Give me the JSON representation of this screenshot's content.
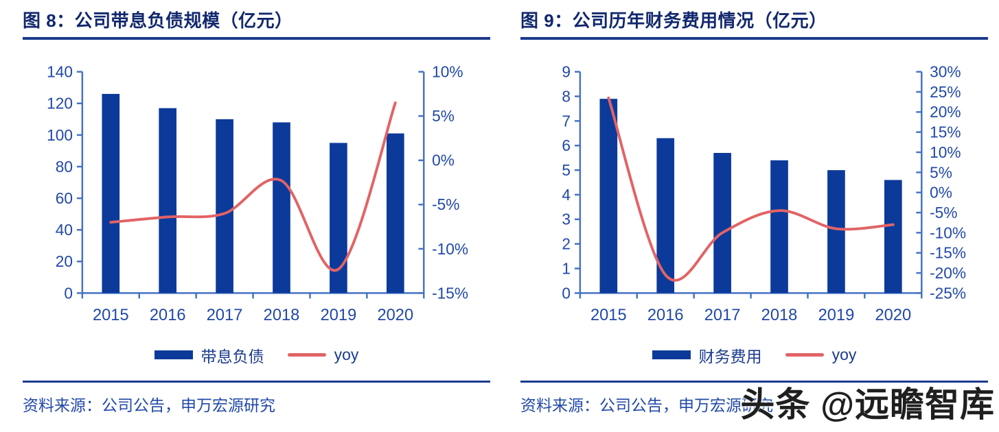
{
  "watermark": {
    "text": "头条 @远瞻智库"
  },
  "colors": {
    "bar": "#0c3a9a",
    "line": "#e16366",
    "axis": "#4472c4",
    "tick_label": "#2148a8",
    "title": "#12286e",
    "rule": "#1b3a8f",
    "source_text": "#2148a8"
  },
  "panels": [
    {
      "source": "资料来源：公司公告，申万宏源研究"
    },
    {
      "source": "资料来源：公司公告，申万宏源研究"
    }
  ],
  "chart_data": [
    {
      "type": "bar",
      "title": "图 8：公司带息负债规模（亿元）",
      "categories": [
        "2015",
        "2016",
        "2017",
        "2018",
        "2019",
        "2020"
      ],
      "series": [
        {
          "name": "带息负债",
          "type": "bar",
          "axis": "left",
          "values": [
            126,
            117,
            110,
            108,
            95,
            101
          ]
        },
        {
          "name": "yoy",
          "type": "line",
          "axis": "right",
          "values": [
            -7.0,
            -6.4,
            -6.0,
            -2.3,
            -12.3,
            6.5
          ]
        }
      ],
      "left_axis": {
        "min": 0,
        "max": 140,
        "step": 20
      },
      "right_axis": {
        "min": -15,
        "max": 10,
        "step": 5,
        "format": "percent"
      },
      "legend_position": "bottom",
      "grid": false
    },
    {
      "type": "bar",
      "title": "图 9：公司历年财务费用情况（亿元）",
      "categories": [
        "2015",
        "2016",
        "2017",
        "2018",
        "2019",
        "2020"
      ],
      "series": [
        {
          "name": "财务费用",
          "type": "bar",
          "axis": "left",
          "values": [
            7.9,
            6.3,
            5.7,
            5.4,
            5.0,
            4.6
          ]
        },
        {
          "name": "yoy",
          "type": "line",
          "axis": "right",
          "values": [
            23.5,
            -20.5,
            -10.0,
            -4.5,
            -9.0,
            -8.0
          ]
        }
      ],
      "left_axis": {
        "min": 0,
        "max": 9,
        "step": 1
      },
      "right_axis": {
        "min": -25,
        "max": 30,
        "step": 5,
        "format": "percent"
      },
      "legend_position": "bottom",
      "grid": false
    }
  ]
}
